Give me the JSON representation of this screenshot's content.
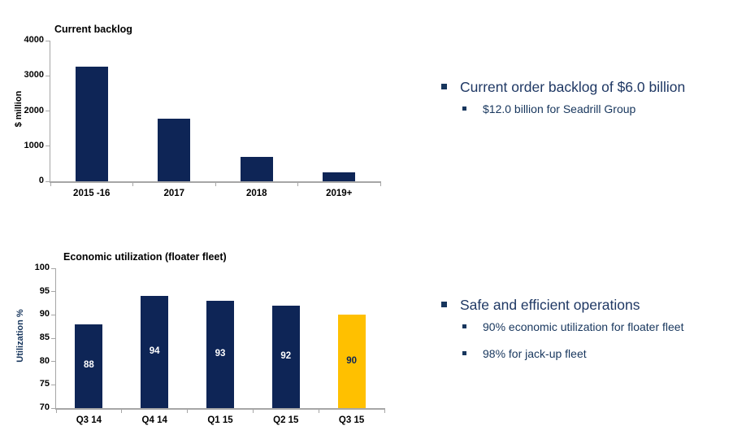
{
  "chart_data": [
    {
      "id": "backlog",
      "type": "bar",
      "title": "Current backlog",
      "xlabel": "",
      "ylabel": "$ million",
      "categories": [
        "2015 -16",
        "2017",
        "2018",
        "2019+"
      ],
      "values": [
        3250,
        1780,
        700,
        250
      ],
      "ylim": [
        0,
        4000
      ],
      "ytick_step": 1000,
      "grid": false,
      "legend": "none",
      "bar_color": "#0E2556",
      "value_labels": false
    },
    {
      "id": "utilization",
      "type": "bar",
      "title": "Economic utilization (floater fleet)",
      "xlabel": "",
      "ylabel": "Utilization %",
      "categories": [
        "Q3 14",
        "Q4 14",
        "Q1 15",
        "Q2 15",
        "Q3 15"
      ],
      "values": [
        88,
        94,
        93,
        92,
        90
      ],
      "ylim": [
        70,
        100
      ],
      "ytick_step": 5,
      "grid": false,
      "legend": "none",
      "bar_color": "#0E2556",
      "value_labels": true,
      "value_label_color": "#FFFFFF",
      "highlight": {
        "index": 4,
        "color": "#FFC000",
        "label_color": "#0E2556"
      }
    }
  ],
  "bullets": [
    {
      "text": "Current order backlog of $6.0 billion",
      "sub": [
        "$12.0 billion for Seadrill Group"
      ]
    },
    {
      "text": "Safe and efficient operations",
      "sub": [
        "90% economic utilization for floater fleet",
        "98% for jack-up fleet"
      ]
    }
  ],
  "colors": {
    "navy": "#0E2556",
    "gold": "#FFC000",
    "main_bullet_text": "#1F3864",
    "sub_bullet_text": "#17365D",
    "axis_line": "#A6A6A6",
    "tick_label": "#000000"
  }
}
